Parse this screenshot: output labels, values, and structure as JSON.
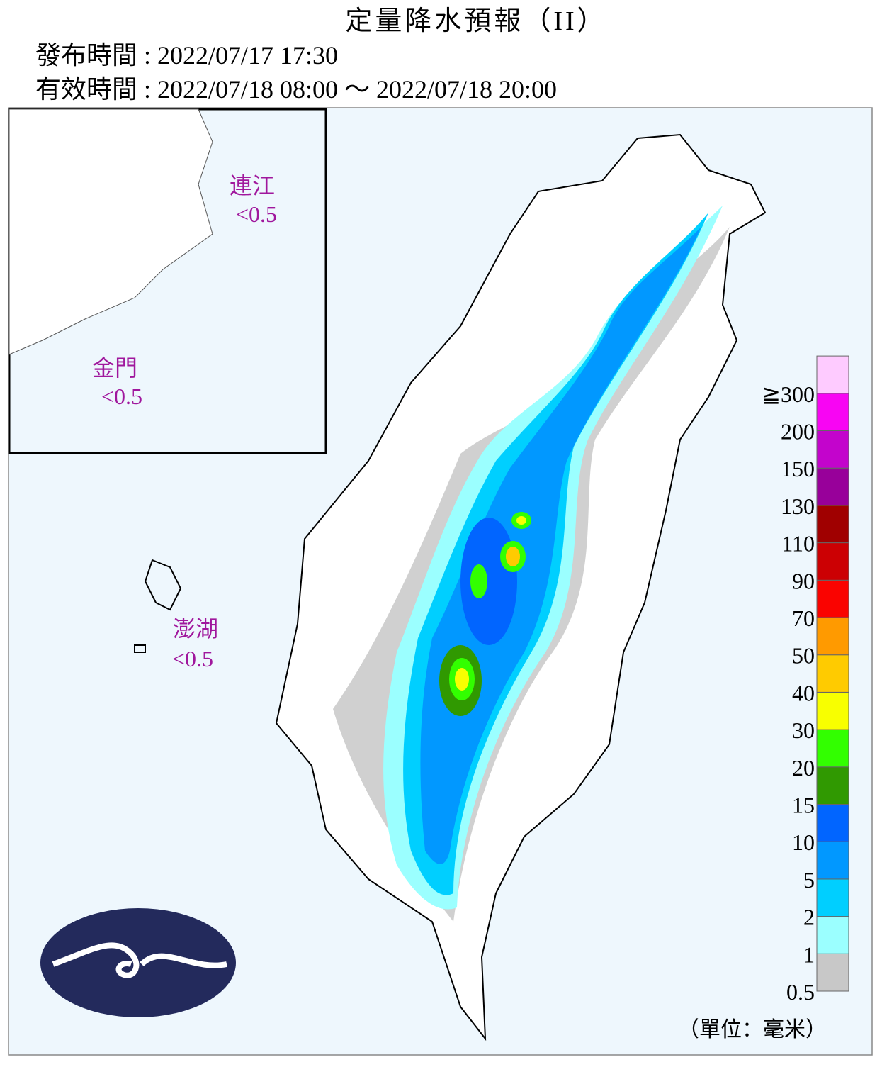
{
  "header": {
    "title": "定量降水預報（II）",
    "issued": "發布時間 : 2022/07/17 17:30",
    "valid": "有效時間 : 2022/07/18 08:00 ～ 2022/07/18 20:00"
  },
  "islands": [
    {
      "name": "連江",
      "value": "<0.5"
    },
    {
      "name": "金門",
      "value": "<0.5"
    },
    {
      "name": "澎湖",
      "value": "<0.5"
    }
  ],
  "legend": {
    "items": [
      {
        "label": "0.5",
        "color": "#c8c8c8"
      },
      {
        "label": "1",
        "color": "#9bffff"
      },
      {
        "label": "2",
        "color": "#00cfff"
      },
      {
        "label": "5",
        "color": "#0198ff"
      },
      {
        "label": "10",
        "color": "#0165ff"
      },
      {
        "label": "15",
        "color": "#309901"
      },
      {
        "label": "20",
        "color": "#32ff00"
      },
      {
        "label": "30",
        "color": "#f8ff00"
      },
      {
        "label": "40",
        "color": "#ffcb00"
      },
      {
        "label": "50",
        "color": "#ff9a00"
      },
      {
        "label": "70",
        "color": "#fa0300"
      },
      {
        "label": "90",
        "color": "#cc0003"
      },
      {
        "label": "110",
        "color": "#a00000"
      },
      {
        "label": "130",
        "color": "#98009a"
      },
      {
        "label": "150",
        "color": "#c304cc"
      },
      {
        "label": "200",
        "color": "#f805f3"
      },
      {
        "label": "≧300",
        "color": "#fecbff"
      }
    ],
    "unit": "（單位：毫米）"
  }
}
